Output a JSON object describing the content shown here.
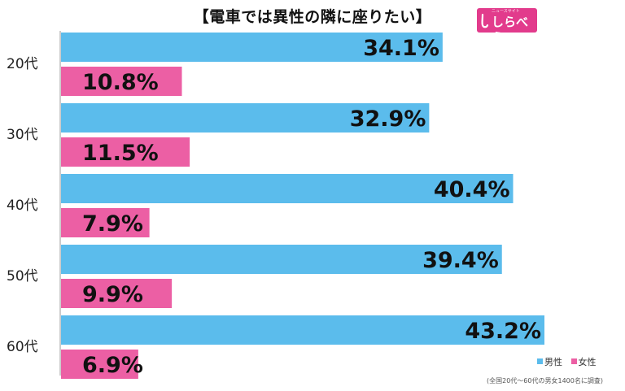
{
  "chart_data": {
    "type": "bar",
    "orientation": "horizontal",
    "title": "【電車では異性の隣に座りたい】",
    "categories": [
      "20代",
      "30代",
      "40代",
      "50代",
      "60代"
    ],
    "series": [
      {
        "name": "男性",
        "color": "#5bbcec",
        "values": [
          34.1,
          32.9,
          40.4,
          39.4,
          43.2
        ],
        "labels": [
          "34.1%",
          "32.9%",
          "40.4%",
          "39.4%",
          "43.2%"
        ]
      },
      {
        "name": "女性",
        "color": "#ec5fa4",
        "values": [
          10.8,
          11.5,
          7.9,
          9.9,
          6.9
        ],
        "labels": [
          "10.8%",
          "11.5%",
          "7.9%",
          "9.9%",
          "6.9%"
        ]
      }
    ],
    "xlim": [
      0,
      50
    ],
    "grid": false,
    "legend_position": "bottom-right",
    "footnote": "(全国20代～60代の男女1400名に調査)"
  },
  "logo": {
    "main": "しらべぇ",
    "sub": "ニュースサイト"
  }
}
